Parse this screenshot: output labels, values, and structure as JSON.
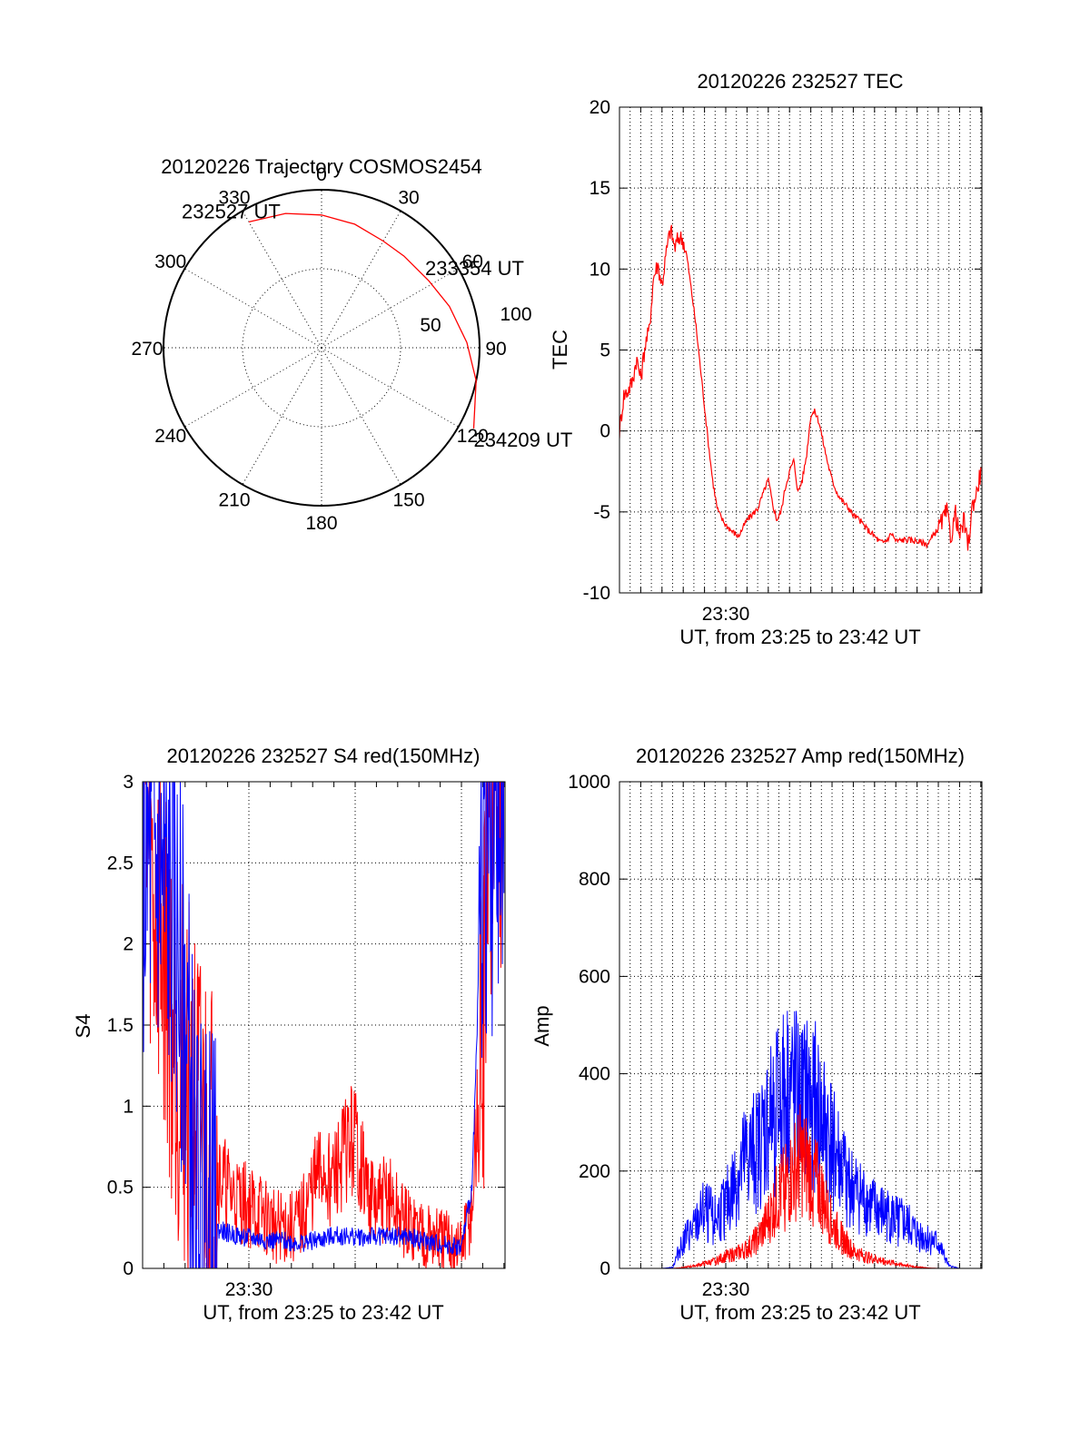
{
  "chart_data": [
    {
      "type": "polar",
      "title": "20120226 Trajectory COSMOS2454",
      "azimuth_labels": [
        "0",
        "30",
        "60",
        "90",
        "120",
        "150",
        "180",
        "210",
        "240",
        "270",
        "300",
        "330"
      ],
      "elevation_ring_labels": [
        "50",
        "100"
      ],
      "track_points": [
        {
          "label": "232527 UT",
          "az": 330,
          "zen": 92
        },
        {
          "label": "",
          "az": 345,
          "zen": 88
        },
        {
          "label": "",
          "az": 360,
          "zen": 84
        },
        {
          "label": "",
          "az": 15,
          "zen": 81
        },
        {
          "label": "",
          "az": 30,
          "zen": 78
        },
        {
          "label": "",
          "az": 42,
          "zen": 78
        },
        {
          "label": "233354 UT",
          "az": 58,
          "zen": 80
        },
        {
          "label": "",
          "az": 72,
          "zen": 85
        },
        {
          "label": "",
          "az": 88,
          "zen": 92
        },
        {
          "label": "",
          "az": 102,
          "zen": 100
        },
        {
          "label": "234209 UT",
          "az": 118,
          "zen": 109
        }
      ],
      "track_color": "#ff0000"
    },
    {
      "type": "line",
      "title": "20120226 232527 TEC",
      "xlabel": "UT, from 23:25 to 23:42 UT",
      "ylabel": "TEC",
      "xtick_labels": [
        {
          "t": 5,
          "label": "23:30"
        }
      ],
      "xlim": [
        0,
        17.05
      ],
      "ylim": [
        -10,
        20
      ],
      "yticks": [
        -10,
        -5,
        0,
        5,
        10,
        15,
        20
      ],
      "minor_grid_x": [
        0.5,
        1,
        1.5,
        2,
        2.5,
        3,
        3.5,
        4,
        4.5,
        5,
        5.5,
        6,
        6.5,
        7,
        7.5,
        8,
        8.5,
        9,
        9.5,
        10,
        10.5,
        11,
        11.5,
        12,
        12.5,
        13,
        13.5,
        14,
        14.5,
        15,
        15.5,
        16,
        16.5
      ],
      "major_grid_x": [
        5,
        10,
        15
      ],
      "series": [
        {
          "color": "#ff0000",
          "x": [
            0,
            0.2,
            0.4,
            0.6,
            0.8,
            1.0,
            1.2,
            1.4,
            1.6,
            1.8,
            2.0,
            2.2,
            2.4,
            2.6,
            2.8,
            3.0,
            3.2,
            3.4,
            3.6,
            3.8,
            4.0,
            4.2,
            4.4,
            4.6,
            4.8,
            5.0,
            5.3,
            5.6,
            6.0,
            6.5,
            7.0,
            7.2,
            7.4,
            7.6,
            7.8,
            8.0,
            8.2,
            8.4,
            8.6,
            8.8,
            9.0,
            9.2,
            9.4,
            9.6,
            9.8,
            10.0,
            10.2,
            10.4,
            10.6,
            10.8,
            11.0,
            11.3,
            11.6,
            12.0,
            12.2,
            12.4,
            12.6,
            12.8,
            13.0,
            13.5,
            14.0,
            14.5,
            15.0,
            15.4,
            15.6,
            15.8,
            16.0,
            16.2,
            16.4,
            16.6,
            16.8,
            17.0
          ],
          "y": [
            0,
            2.2,
            2.5,
            3.0,
            4.5,
            3.2,
            5.3,
            6.2,
            9.5,
            10.3,
            9.0,
            11.0,
            12.5,
            11.3,
            12.0,
            11.8,
            10.5,
            8.5,
            6.5,
            4.0,
            1.5,
            -1.0,
            -3.2,
            -4.8,
            -5.4,
            -5.8,
            -6.2,
            -6.5,
            -5.5,
            -4.8,
            -3.0,
            -4.5,
            -5.5,
            -5.0,
            -3.5,
            -2.5,
            -1.8,
            -3.8,
            -3.0,
            -1.5,
            1.0,
            1.2,
            0.5,
            -0.8,
            -2.0,
            -3.0,
            -3.7,
            -4.2,
            -4.5,
            -4.8,
            -5.2,
            -5.5,
            -6.0,
            -6.5,
            -6.8,
            -6.9,
            -6.7,
            -6.3,
            -6.8,
            -6.7,
            -6.8,
            -7.0,
            -6.0,
            -5.0,
            -6.6,
            -5.0,
            -6.6,
            -5.5,
            -7.2,
            -4.6,
            -3.8,
            -2.5
          ]
        }
      ]
    },
    {
      "type": "line",
      "title": "20120226 232527 S4 red(150MHz)",
      "xlabel": "UT, from 23:25 to 23:42 UT",
      "ylabel": "S4",
      "xtick_labels": [
        {
          "t": 5,
          "label": "23:30"
        }
      ],
      "xlim": [
        0,
        17.05
      ],
      "ylim": [
        0,
        3
      ],
      "yticks": [
        0,
        0.5,
        1,
        1.5,
        2,
        2.5,
        3
      ],
      "ytick_labels": [
        "0",
        "0.5",
        "1",
        "1.5",
        "2",
        "2.5",
        "3"
      ],
      "series": [
        {
          "name": "",
          "color": "#ff0000",
          "x": [
            0,
            0.5,
            1,
            1.5,
            2,
            2.5,
            3,
            3.5,
            4,
            4.5,
            5,
            5.5,
            6,
            6.5,
            7,
            7.5,
            8,
            8.5,
            9,
            9.5,
            10,
            10.5,
            11,
            11.5,
            12,
            12.5,
            13,
            13.5,
            14,
            14.5,
            15,
            15.5,
            16,
            16.5,
            17
          ],
          "y": [
            3.0,
            2.2,
            2.0,
            1.4,
            1.2,
            0.9,
            0.75,
            0.6,
            0.48,
            0.42,
            0.38,
            0.34,
            0.28,
            0.26,
            0.24,
            0.3,
            0.5,
            0.6,
            0.55,
            0.72,
            0.8,
            0.5,
            0.35,
            0.45,
            0.33,
            0.25,
            0.24,
            0.2,
            0.16,
            0.14,
            0.12,
            0.35,
            1.5,
            3.0,
            3.0
          ]
        },
        {
          "name": "",
          "color": "#0000ff",
          "x": [
            0,
            0.5,
            1,
            1.5,
            2,
            2.5,
            3,
            3.5,
            4,
            4.5,
            5,
            5.5,
            6,
            6.5,
            7,
            7.5,
            8,
            8.5,
            9,
            9.5,
            10,
            10.5,
            11,
            11.5,
            12,
            12.5,
            13,
            13.5,
            14,
            14.5,
            15,
            15.5,
            16,
            16.5,
            17
          ],
          "y": [
            2.4,
            2.5,
            2.3,
            2.1,
            1.6,
            0.5,
            0.28,
            0.24,
            0.22,
            0.2,
            0.19,
            0.18,
            0.17,
            0.17,
            0.16,
            0.16,
            0.17,
            0.18,
            0.2,
            0.2,
            0.2,
            0.19,
            0.2,
            0.2,
            0.2,
            0.19,
            0.18,
            0.16,
            0.15,
            0.14,
            0.13,
            0.5,
            2.6,
            2.6,
            2.5
          ]
        }
      ]
    },
    {
      "type": "line",
      "title": "20120226 232527 Amp red(150MHz)",
      "xlabel": "UT, from 23:25 to 23:42 UT",
      "ylabel": "Amp",
      "xtick_labels": [
        {
          "t": 5,
          "label": "23:30"
        }
      ],
      "xlim": [
        0,
        17.05
      ],
      "ylim": [
        0,
        1000
      ],
      "yticks": [
        0,
        200,
        400,
        600,
        800,
        1000
      ],
      "series": [
        {
          "name": "",
          "color": "#0000ff",
          "x": [
            0,
            1,
            2,
            2.5,
            3,
            3.5,
            4,
            4.5,
            5,
            5.5,
            6,
            6.5,
            7,
            7.5,
            8,
            8.5,
            9,
            9.5,
            10,
            10.5,
            11,
            11.5,
            12,
            12.5,
            13,
            13.5,
            14,
            14.5,
            15,
            15.5,
            16,
            16.5,
            17
          ],
          "y": [
            0,
            0,
            0,
            2,
            60,
            80,
            120,
            100,
            130,
            180,
            230,
            240,
            300,
            330,
            370,
            330,
            350,
            300,
            260,
            200,
            160,
            140,
            120,
            110,
            100,
            90,
            70,
            60,
            50,
            5,
            0,
            0,
            0
          ]
        },
        {
          "name": "",
          "color": "#ff0000",
          "x": [
            0,
            1,
            2,
            2.5,
            3,
            3.5,
            4,
            4.5,
            5,
            5.5,
            6,
            6.5,
            7,
            7.5,
            8,
            8.5,
            9,
            9.5,
            10,
            10.5,
            11,
            11.5,
            12,
            12.5,
            13,
            13.5,
            14,
            14.5,
            15,
            15.5,
            16,
            16.5,
            17
          ],
          "y": [
            0,
            0,
            0,
            0,
            2,
            5,
            10,
            15,
            25,
            30,
            40,
            60,
            100,
            150,
            180,
            220,
            200,
            150,
            90,
            60,
            35,
            25,
            20,
            15,
            10,
            6,
            3,
            1,
            0,
            0,
            0,
            0,
            0
          ]
        }
      ]
    }
  ]
}
